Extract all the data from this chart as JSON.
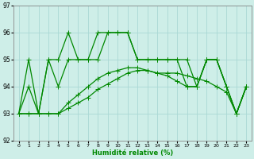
{
  "xlabel": "Humidité relative (%)",
  "xlim": [
    -0.5,
    23.5
  ],
  "ylim": [
    92,
    97
  ],
  "yticks": [
    92,
    93,
    94,
    95,
    96,
    97
  ],
  "xticks": [
    0,
    1,
    2,
    3,
    4,
    5,
    6,
    7,
    8,
    9,
    10,
    11,
    12,
    13,
    14,
    15,
    16,
    17,
    18,
    19,
    20,
    21,
    22,
    23
  ],
  "background_color": "#ceeee8",
  "grid_color": "#aad8d4",
  "line_color": "#008800",
  "lines": [
    [
      93,
      94,
      93,
      95,
      95,
      96,
      95,
      95,
      96,
      96,
      96,
      96,
      95,
      95,
      95,
      95,
      95,
      95,
      94,
      95,
      95,
      94,
      93,
      94
    ],
    [
      93,
      95,
      93,
      95,
      94,
      95,
      95,
      95,
      95,
      96,
      96,
      96,
      95,
      95,
      95,
      95,
      95,
      94,
      94,
      95,
      95,
      94,
      93,
      94
    ],
    [
      93,
      93,
      93,
      93,
      93,
      93.2,
      93.4,
      93.6,
      93.9,
      94.1,
      94.3,
      94.5,
      94.6,
      94.6,
      94.5,
      94.5,
      94.5,
      94.4,
      94.3,
      94.2,
      94.0,
      93.8,
      93.0,
      94
    ],
    [
      93,
      93,
      93,
      93,
      93,
      93.4,
      93.7,
      94.0,
      94.3,
      94.5,
      94.6,
      94.7,
      94.7,
      94.6,
      94.5,
      94.4,
      94.2,
      94.0,
      94.0,
      95,
      95,
      94,
      93,
      94
    ]
  ],
  "marker": "+",
  "markersize": 4,
  "linewidth": 0.9
}
